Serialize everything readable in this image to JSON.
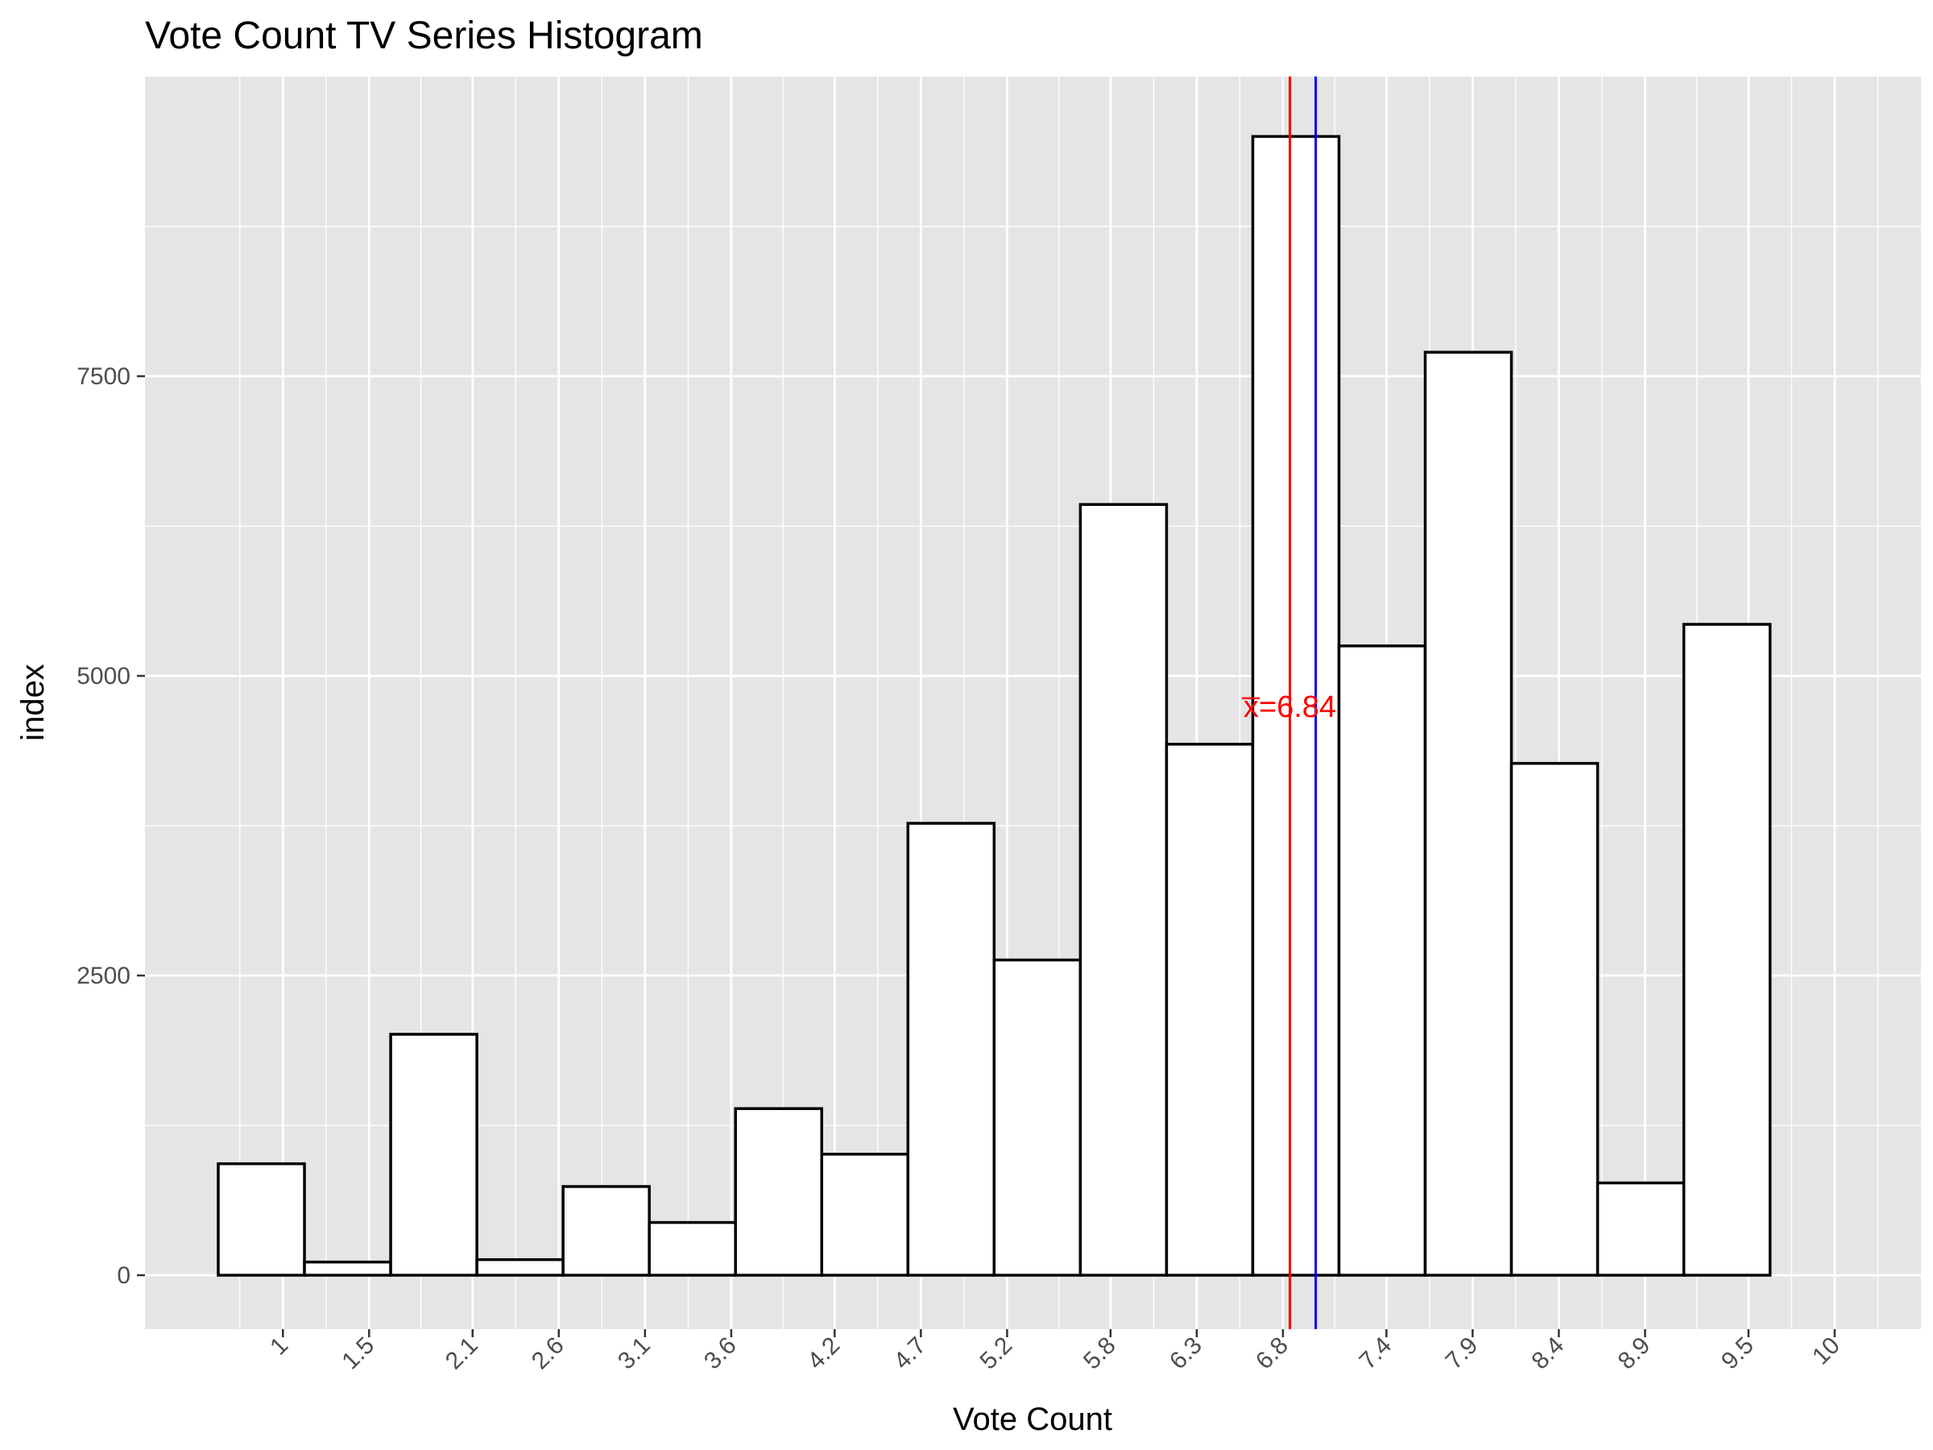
{
  "chart_data": {
    "type": "bar",
    "title": "Vote Count TV Series Histogram",
    "xlabel": "Vote Count",
    "ylabel": "index",
    "x_ticks": [
      "1",
      "1.5",
      "2.1",
      "2.6",
      "3.1",
      "3.6",
      "4.2",
      "4.7",
      "5.2",
      "5.8",
      "6.3",
      "6.8",
      "7.4",
      "7.9",
      "8.4",
      "8.9",
      "9.5",
      "10"
    ],
    "x_tick_values": [
      1.0,
      1.5,
      2.1,
      2.6,
      3.1,
      3.6,
      4.2,
      4.7,
      5.2,
      5.8,
      6.3,
      6.8,
      7.4,
      7.9,
      8.4,
      8.9,
      9.5,
      10.0
    ],
    "y_ticks": [
      0,
      2500,
      5000,
      7500
    ],
    "xlim": [
      0.2,
      10.5
    ],
    "ylim": [
      -450,
      10000
    ],
    "bins": [
      {
        "x0": 0.625,
        "x1": 1.125,
        "value": 930
      },
      {
        "x0": 1.125,
        "x1": 1.625,
        "value": 110
      },
      {
        "x0": 1.625,
        "x1": 2.125,
        "value": 2010
      },
      {
        "x0": 2.125,
        "x1": 2.625,
        "value": 130
      },
      {
        "x0": 2.625,
        "x1": 3.125,
        "value": 740
      },
      {
        "x0": 3.125,
        "x1": 3.625,
        "value": 440
      },
      {
        "x0": 3.625,
        "x1": 4.125,
        "value": 1390
      },
      {
        "x0": 4.125,
        "x1": 4.625,
        "value": 1010
      },
      {
        "x0": 4.625,
        "x1": 5.125,
        "value": 3770
      },
      {
        "x0": 5.125,
        "x1": 5.625,
        "value": 2630
      },
      {
        "x0": 5.625,
        "x1": 6.125,
        "value": 6430
      },
      {
        "x0": 6.125,
        "x1": 6.625,
        "value": 4430
      },
      {
        "x0": 6.625,
        "x1": 7.125,
        "value": 9500
      },
      {
        "x0": 7.125,
        "x1": 7.625,
        "value": 5250
      },
      {
        "x0": 7.625,
        "x1": 8.125,
        "value": 7700
      },
      {
        "x0": 8.125,
        "x1": 8.625,
        "value": 4270
      },
      {
        "x0": 8.625,
        "x1": 9.125,
        "value": 770
      },
      {
        "x0": 9.125,
        "x1": 9.625,
        "value": 5430
      }
    ],
    "mean_line": {
      "value": 6.84,
      "color": "#ff0000",
      "label": "x̅=6.84"
    },
    "median_line": {
      "value": 6.99,
      "color": "#0000ff"
    },
    "colors": {
      "panel_bg": "#e5e5e5",
      "grid": "#ffffff",
      "bar_fill": "#ffffff",
      "bar_stroke": "#000000",
      "tick_text": "#4d4d4d"
    },
    "grid": true,
    "legend": "none"
  }
}
